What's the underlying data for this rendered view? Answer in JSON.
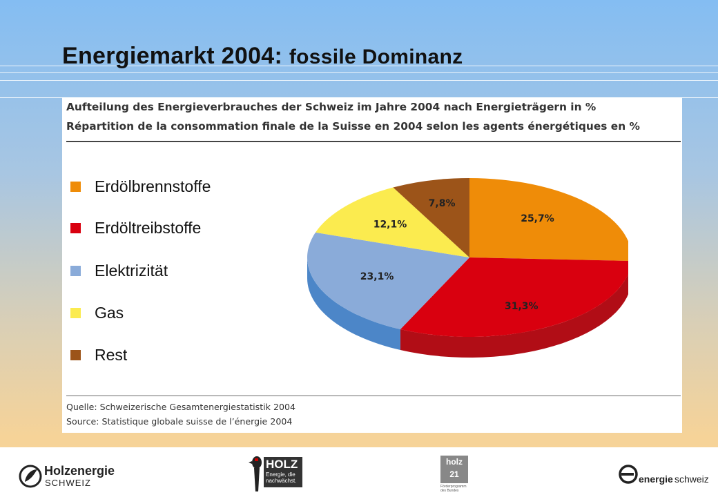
{
  "slide": {
    "title_main": "Energiemarkt 2004:",
    "title_sub": "fossile Dominanz"
  },
  "panel": {
    "title_de": "Aufteilung des Energieverbrauches der Schweiz im Jahre 2004 nach Energieträgern in %",
    "title_fr": "Répartition de la consommation finale de la Suisse en 2004 selon les agents énergétiques en %",
    "source_de": "Quelle: Schweizerische Gesamtenergiestatistik 2004",
    "source_fr": "Source: Statistique globale suisse de l’énergie 2004"
  },
  "chart_data": {
    "type": "pie",
    "title": "Aufteilung des Energieverbrauches der Schweiz im Jahre 2004 nach Energieträgern in %",
    "subtitle": "Répartition de la consommation finale de la Suisse en 2004 selon les agents énergétiques en %",
    "categories": [
      "Erdölbrennstoffe",
      "Erdöltreibstoffe",
      "Elektrizität",
      "Gas",
      "Rest"
    ],
    "values": [
      25.7,
      31.3,
      23.1,
      12.1,
      7.8
    ],
    "value_labels": [
      "25,7%",
      "31,3%",
      "23,1%",
      "12,1%",
      "7,8%"
    ],
    "colors": [
      "#ef8c08",
      "#d9000f",
      "#8aabd9",
      "#fbeb4f",
      "#9c5419"
    ],
    "side_colors": [
      "#c0700a",
      "#b10d16",
      "#4c86c8",
      "#c9b83a",
      "#7a3f12"
    ],
    "legend_position": "left",
    "style": "3d-tilted"
  },
  "footer": {
    "logo1_line1": "Holzenergie",
    "logo1_line2": "SCHWEIZ",
    "logo2_line1": "HOLZ",
    "logo2_line2": "Energie, die",
    "logo2_line3": "nachwächst.",
    "logo3_text": "holz 21",
    "logo3_caption": "Förderprogramm des Bundes",
    "logo4_text_bold": "energie",
    "logo4_text": "schweiz"
  }
}
